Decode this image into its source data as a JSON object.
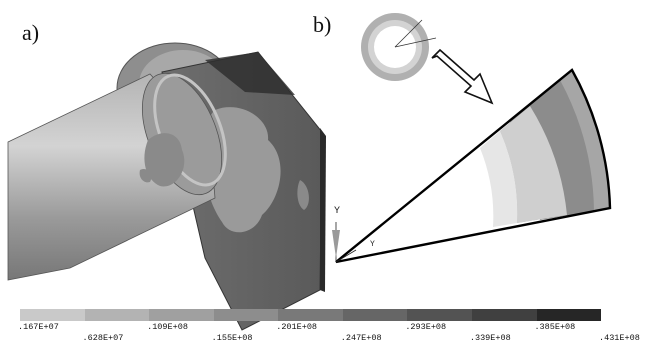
{
  "labels": {
    "a": "a)",
    "b": "b)"
  },
  "axis_label": "Y",
  "legend": {
    "colors": [
      "#c9c9c9",
      "#b3b3b3",
      "#a0a0a0",
      "#8d8d8d",
      "#797979",
      "#666666",
      "#535353",
      "#404040",
      "#262626"
    ],
    "ticks_top": [
      ".167E+07",
      ".109E+08",
      ".201E+08",
      ".293E+08",
      ".385E+08"
    ],
    "ticks_bottom": [
      ".628E+07",
      ".155E+08",
      ".247E+08",
      ".339E+08",
      ".431E+08"
    ]
  }
}
